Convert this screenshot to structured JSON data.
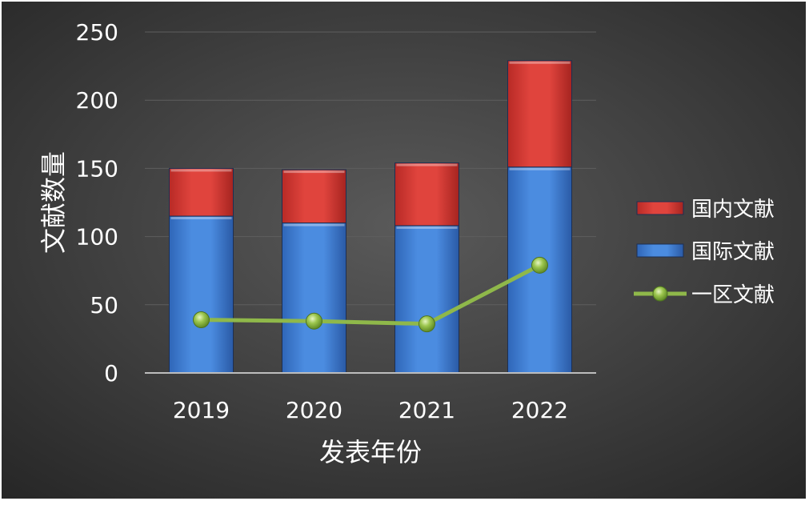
{
  "chart_data": {
    "type": "bar",
    "stacked": true,
    "categories": [
      "2019",
      "2020",
      "2021",
      "2022"
    ],
    "series": [
      {
        "name": "国际文献",
        "type": "bar",
        "color": "#3f7fd6",
        "values": [
          115,
          110,
          108,
          151
        ]
      },
      {
        "name": "国内文献",
        "type": "bar",
        "color": "#d93a34",
        "values": [
          35,
          39,
          46,
          78
        ]
      },
      {
        "name": "一区文献",
        "type": "line",
        "color": "#8fb84a",
        "values": [
          39,
          38,
          36,
          79
        ]
      }
    ],
    "xlabel": "发表年份",
    "ylabel": "文献数量",
    "ylim": [
      0,
      250
    ],
    "yticks": [
      "0",
      "50",
      "100",
      "150",
      "200",
      "250"
    ],
    "grid": true,
    "legend_position": "right",
    "legend_order": [
      "国内文献",
      "国际文献",
      "一区文献"
    ],
    "background": "#3a3a3a",
    "axis_text_color": "#ffffff",
    "gridline_color": "#5e5e5e"
  }
}
